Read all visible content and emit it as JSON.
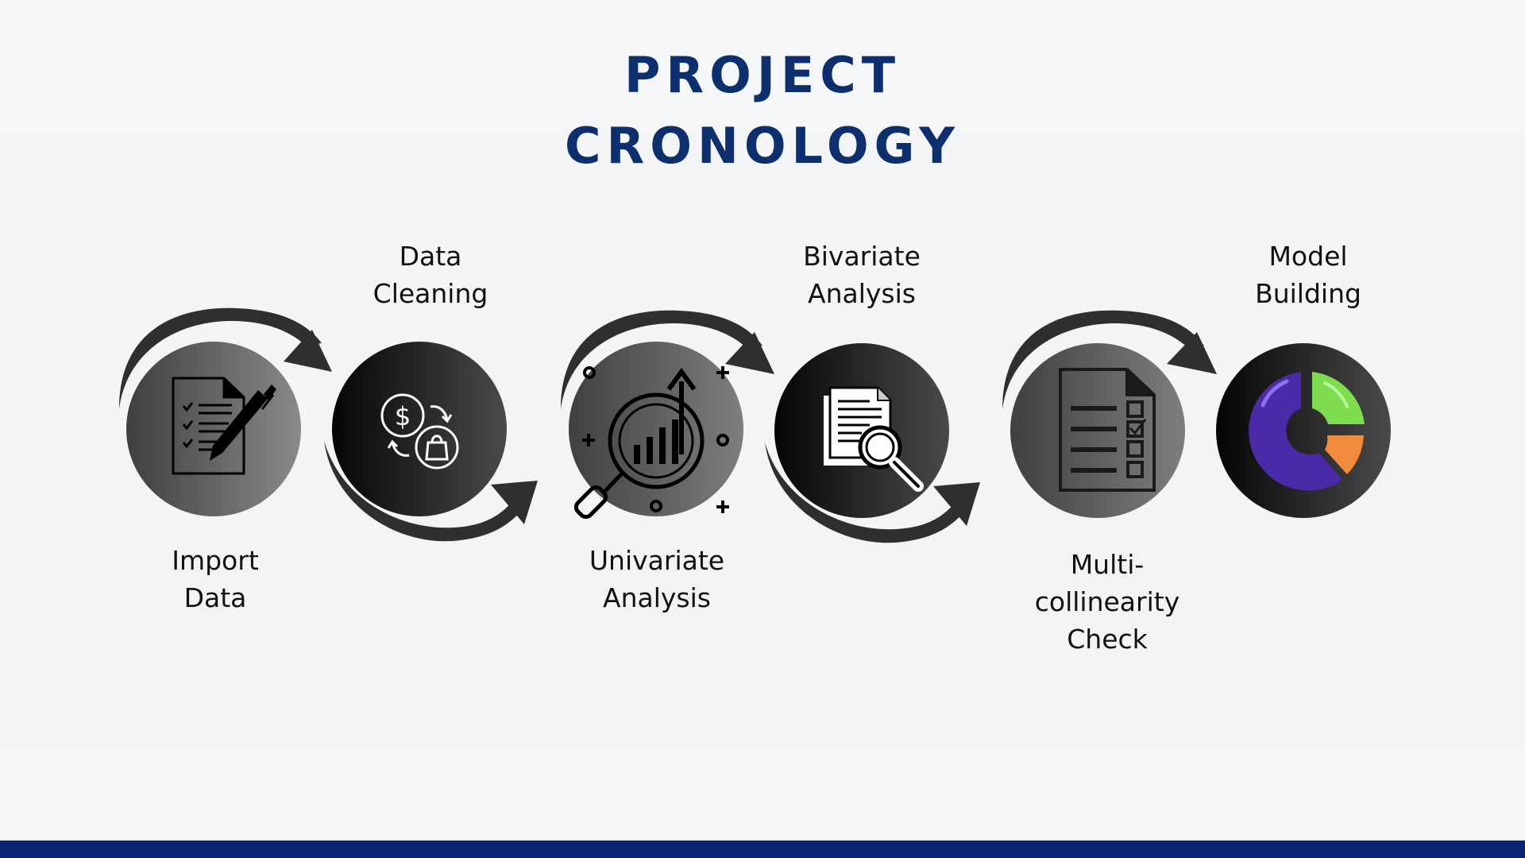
{
  "title": {
    "line1": "PROJECT",
    "line2": "CRONOLOGY"
  },
  "steps": [
    {
      "line1": "Import",
      "line2": "Data",
      "icon": "checklist-pen-icon"
    },
    {
      "line1": "Data",
      "line2": "Cleaning",
      "icon": "dollar-exchange-bag-icon"
    },
    {
      "line1": "Univariate",
      "line2": "Analysis",
      "icon": "magnifier-growth-chart-icon"
    },
    {
      "line1": "Bivariate",
      "line2": "Analysis",
      "icon": "document-search-icon"
    },
    {
      "line1": "Multi-",
      "line2": "collinearity",
      "line3": "Check",
      "icon": "document-checklist-icon"
    },
    {
      "line1": "Model",
      "line2": "Building",
      "icon": "donut-chart-icon"
    }
  ],
  "colors": {
    "title": "#0d2f6e",
    "bottom_bar": "#0a2474",
    "arrow": "#2f2f2f",
    "donut_purple": "#4b2aa8",
    "donut_green": "#7ddc4f",
    "donut_orange": "#f08a3c"
  }
}
